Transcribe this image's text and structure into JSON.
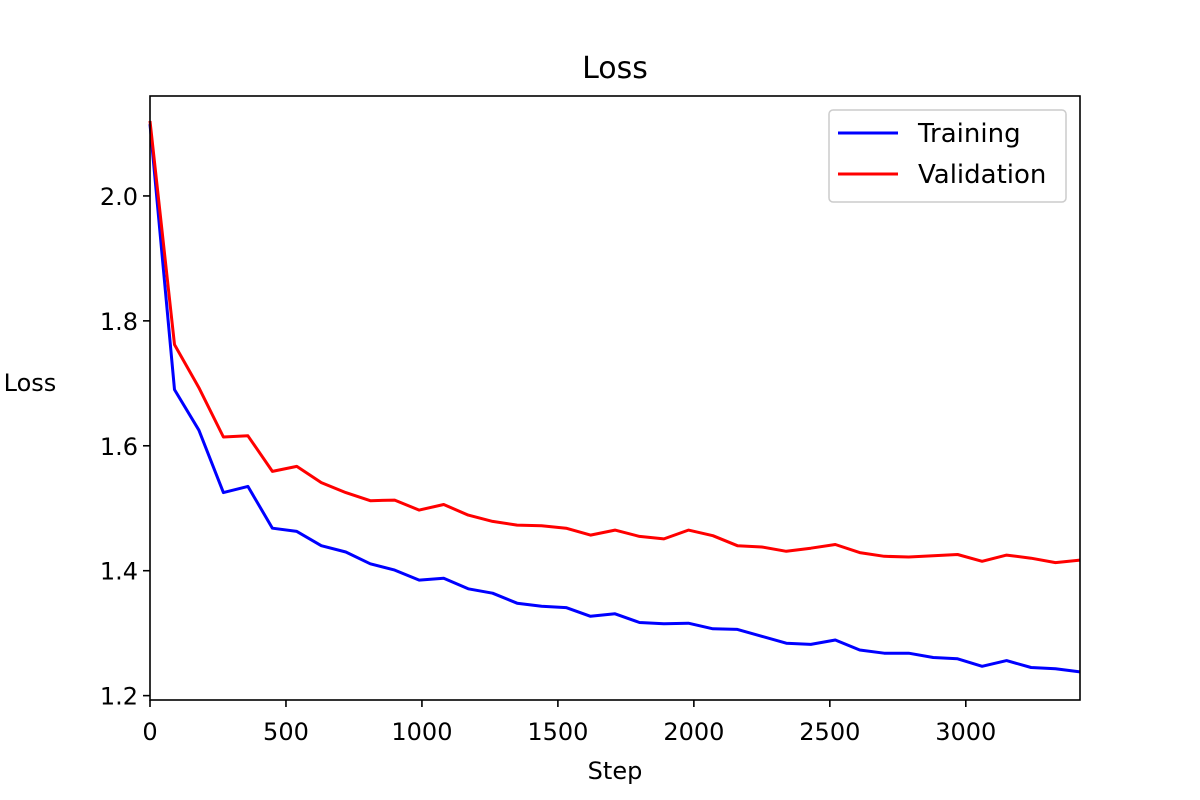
{
  "chart_data": {
    "type": "line",
    "title": "Loss",
    "xlabel": "Step",
    "ylabel": "Loss",
    "xlim": [
      0,
      3420
    ],
    "ylim": [
      1.193,
      2.16
    ],
    "xticks": [
      0,
      500,
      1000,
      1500,
      2000,
      2500,
      3000
    ],
    "yticks": [
      1.2,
      1.4,
      1.6,
      1.8,
      2.0
    ],
    "xtick_labels": [
      "0",
      "500",
      "1000",
      "1500",
      "2000",
      "2500",
      "3000"
    ],
    "ytick_labels": [
      "1.2",
      "1.4",
      "1.6",
      "1.8",
      "2.0"
    ],
    "grid": false,
    "legend_position": "top-right",
    "x": [
      0,
      90,
      180,
      270,
      360,
      450,
      540,
      630,
      720,
      810,
      900,
      990,
      1080,
      1170,
      1260,
      1350,
      1440,
      1530,
      1620,
      1710,
      1800,
      1890,
      1980,
      2070,
      2160,
      2250,
      2340,
      2430,
      2520,
      2610,
      2700,
      2790,
      2880,
      2970,
      3060,
      3150,
      3240,
      3330,
      3420
    ],
    "series": [
      {
        "name": "Training",
        "color": "#0000ff",
        "values": [
          2.115,
          1.69,
          1.625,
          1.525,
          1.535,
          1.468,
          1.463,
          1.44,
          1.43,
          1.411,
          1.401,
          1.385,
          1.388,
          1.371,
          1.364,
          1.348,
          1.343,
          1.341,
          1.327,
          1.331,
          1.317,
          1.315,
          1.316,
          1.307,
          1.306,
          1.295,
          1.284,
          1.282,
          1.289,
          1.273,
          1.268,
          1.268,
          1.261,
          1.259,
          1.247,
          1.256,
          1.245,
          1.243,
          1.238
        ]
      },
      {
        "name": "Validation",
        "color": "#ff0000",
        "values": [
          2.12,
          1.762,
          1.693,
          1.614,
          1.616,
          1.559,
          1.567,
          1.541,
          1.525,
          1.512,
          1.513,
          1.497,
          1.506,
          1.489,
          1.479,
          1.473,
          1.472,
          1.468,
          1.457,
          1.465,
          1.455,
          1.451,
          1.465,
          1.456,
          1.44,
          1.438,
          1.431,
          1.436,
          1.442,
          1.429,
          1.423,
          1.422,
          1.424,
          1.426,
          1.415,
          1.425,
          1.42,
          1.413,
          1.417
        ]
      }
    ]
  }
}
